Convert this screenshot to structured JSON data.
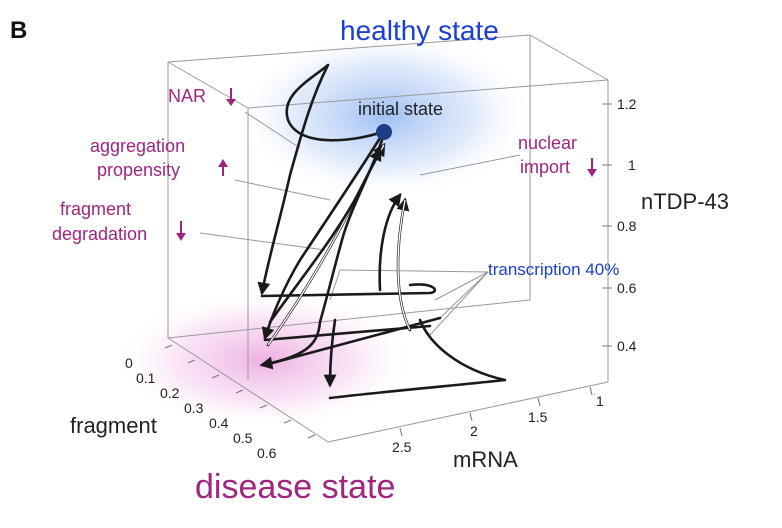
{
  "panel_label": "B",
  "states": {
    "healthy": "healthy state",
    "disease": "disease state",
    "initial": "initial state"
  },
  "annotations": {
    "nar": "NAR",
    "aggregation_line1": "aggregation",
    "aggregation_line2": "propensity",
    "fragment_line1": "fragment",
    "fragment_line2": "degradation",
    "nuclear_line1": "nuclear",
    "nuclear_line2": "import",
    "transcription": "transcription 40%"
  },
  "arrows": {
    "nar": "down",
    "aggregation": "up",
    "fragment": "down",
    "nuclear": "down"
  },
  "axes": {
    "z": {
      "title": "nTDP-43",
      "ticks": [
        "1.2",
        "1",
        "0.8",
        "0.6",
        "0.4"
      ]
    },
    "x": {
      "title": "fragment",
      "ticks": [
        "0",
        "0.1",
        "0.2",
        "0.3",
        "0.4",
        "0.5",
        "0.6"
      ]
    },
    "y": {
      "title": "mRNA",
      "ticks": [
        "2.5",
        "2",
        "1.5",
        "1"
      ]
    }
  },
  "colors": {
    "healthy_glow": "#7faaf0",
    "disease_glow": "#e78fd8",
    "annotation": "#a0257f",
    "blue_text": "#1a3fd1",
    "initial_point": "#1f3c88"
  }
}
